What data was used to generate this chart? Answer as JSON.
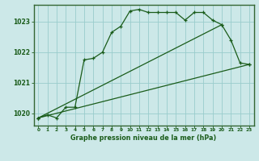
{
  "background_color": "#cce8e8",
  "plot_bg_color": "#cce8e8",
  "grid_color": "#99cccc",
  "line_color": "#1a5c1a",
  "border_color": "#336633",
  "title": "Graphe pression niveau de la mer (hPa)",
  "xlim": [
    -0.5,
    23.5
  ],
  "ylim": [
    1019.6,
    1023.55
  ],
  "yticks": [
    1020,
    1021,
    1022,
    1023
  ],
  "xticks": [
    0,
    1,
    2,
    3,
    4,
    5,
    6,
    7,
    8,
    9,
    10,
    11,
    12,
    13,
    14,
    15,
    16,
    17,
    18,
    19,
    20,
    21,
    22,
    23
  ],
  "line1_x": [
    0,
    1,
    2,
    3,
    4,
    5,
    6,
    7,
    8,
    9,
    10,
    11,
    12,
    13,
    14,
    15,
    16,
    17,
    18,
    19,
    20,
    21,
    22,
    23
  ],
  "line1_y": [
    1019.85,
    1019.95,
    1019.85,
    1020.2,
    1020.2,
    1021.75,
    1021.8,
    1022.0,
    1022.65,
    1022.85,
    1023.35,
    1023.4,
    1023.3,
    1023.3,
    1023.3,
    1023.3,
    1023.05,
    1023.3,
    1023.3,
    1023.05,
    1022.9,
    1022.4,
    1021.65,
    1021.6
  ],
  "line2_x": [
    0,
    23
  ],
  "line2_y": [
    1019.85,
    1021.6
  ],
  "line3_x": [
    0,
    20
  ],
  "line3_y": [
    1019.85,
    1022.9
  ]
}
